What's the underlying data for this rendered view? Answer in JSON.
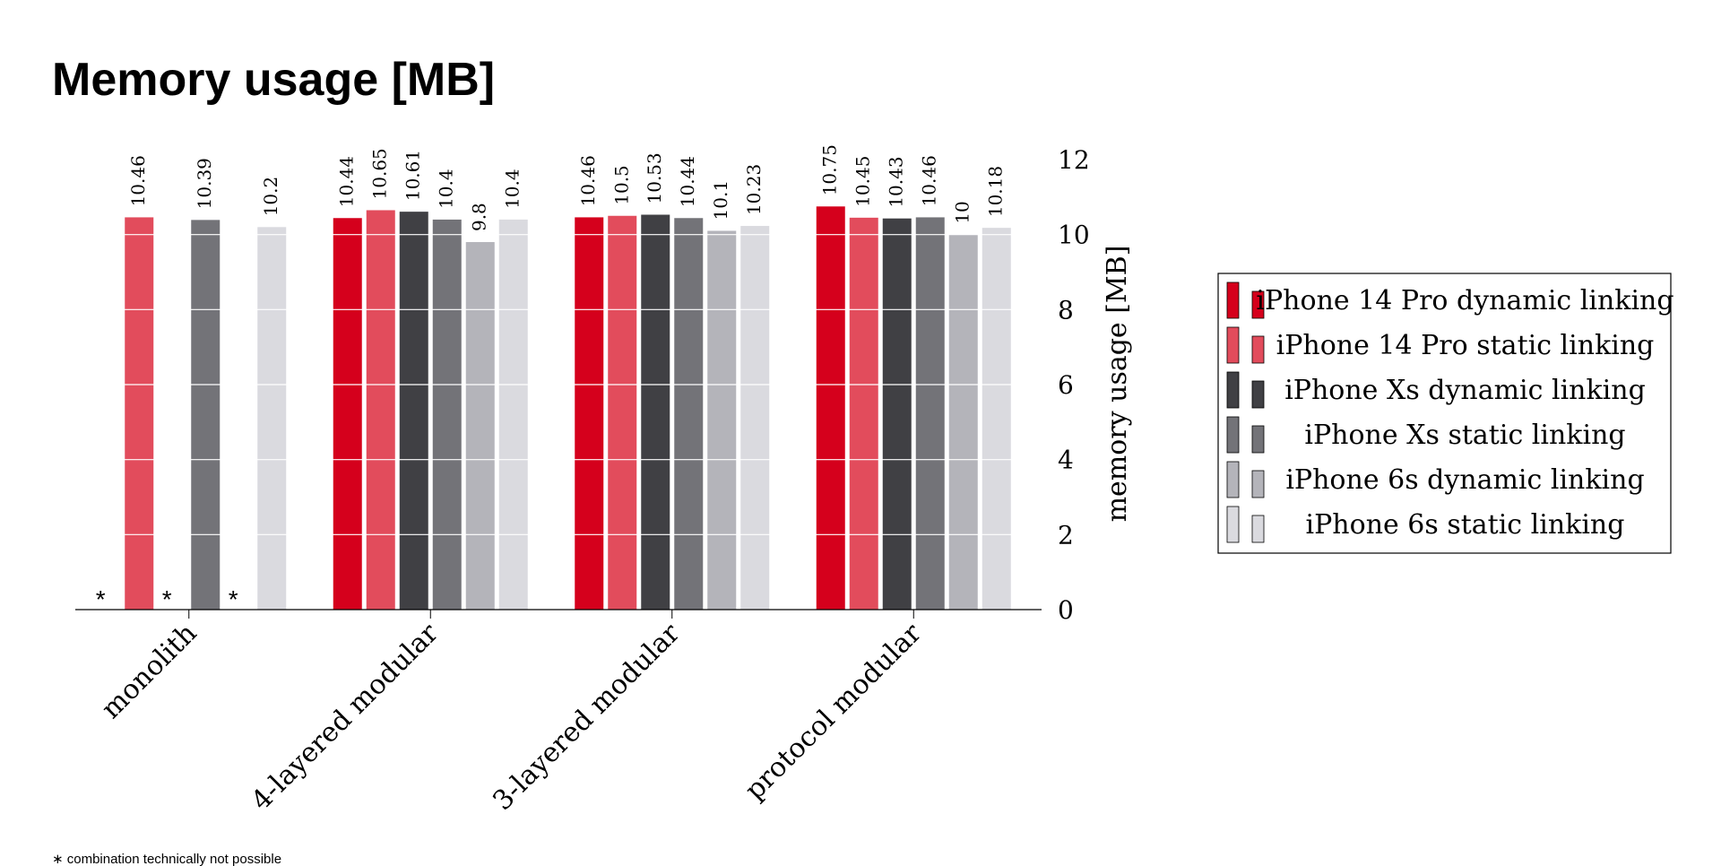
{
  "chart_data": {
    "type": "bar",
    "title": "Memory usage [MB]",
    "ylabel": "memory usage [MB]",
    "xlabel": "",
    "ylim": [
      0,
      12
    ],
    "yticks": [
      0,
      2,
      4,
      6,
      8,
      10,
      12
    ],
    "y_axis_side": "right",
    "grid": "horizontal (white lines over bars)",
    "legend_position": "right",
    "categories": [
      "monolith",
      "4-layered modular",
      "3-layered modular",
      "protocol modular"
    ],
    "series": [
      {
        "name": "iPhone 14 Pro dynamic linking",
        "color": "#d5001c",
        "values": [
          null,
          10.44,
          10.46,
          10.75
        ],
        "labels": [
          "*",
          "10.44",
          "10.46",
          "10.75"
        ]
      },
      {
        "name": "iPhone 14 Pro static linking",
        "color": "#e24c5c",
        "values": [
          10.46,
          10.65,
          10.5,
          10.45
        ],
        "labels": [
          "10.46",
          "10.65",
          "10.5",
          "10.45"
        ]
      },
      {
        "name": "iPhone Xs dynamic linking",
        "color": "#404044",
        "values": [
          null,
          10.61,
          10.53,
          10.43
        ],
        "labels": [
          "*",
          "10.61",
          "10.53",
          "10.43"
        ]
      },
      {
        "name": "iPhone Xs static linking",
        "color": "#737378",
        "values": [
          10.39,
          10.4,
          10.44,
          10.46
        ],
        "labels": [
          "10.39",
          "10.4",
          "10.44",
          "10.46"
        ]
      },
      {
        "name": "iPhone 6s dynamic linking",
        "color": "#b4b4ba",
        "values": [
          null,
          9.8,
          10.1,
          10
        ],
        "labels": [
          "*",
          "9.8",
          "10.1",
          "10"
        ]
      },
      {
        "name": "iPhone 6s static linking",
        "color": "#dadadf",
        "values": [
          10.2,
          10.4,
          10.23,
          10.18
        ],
        "labels": [
          "10.2",
          "10.4",
          "10.23",
          "10.18"
        ]
      }
    ],
    "missing_marker": "*",
    "footnote": "∗ combination technically not possible"
  }
}
